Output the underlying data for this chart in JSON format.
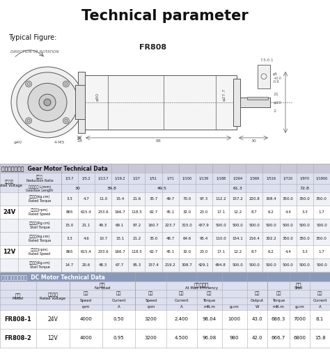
{
  "title": "Technical parameter",
  "typical_figure": "Typical Figure:",
  "gear_motor_header": "减速箱技术参数  Gear Motor Technical Data",
  "dc_motor_header": "直流马达技术参数  DC Motor Technical Data",
  "reduction_ratios": [
    "1/3.7",
    "1/5.2",
    "1/13.7",
    "1/19.2",
    "1/27",
    "1/51",
    "1/71",
    "1/100",
    "1/139",
    "1/188",
    "1/264",
    "1/369",
    "1/516",
    "1/720",
    "1/970",
    "1/1900"
  ],
  "gb_lengths_spans": [
    {
      "val": "30",
      "s": 0,
      "e": 1
    },
    {
      "val": "39.8",
      "s": 2,
      "e": 3
    },
    {
      "val": "49.5",
      "s": 4,
      "e": 7
    },
    {
      "val": "61.3",
      "s": 8,
      "e": 12
    },
    {
      "val": "72.8",
      "s": 13,
      "e": 15
    }
  ],
  "gear_rows_24v": [
    {
      "zh": "额定力矩(kg.cm)",
      "en": "Rated Torque",
      "values": [
        "3.3",
        "4.7",
        "11.0",
        "15.4",
        "21.6",
        "35.7",
        "49.7",
        "70.0",
        "97.3",
        "112.2",
        "157.2",
        "220.8",
        "308.4",
        "350.0",
        "350.0",
        "350.0"
      ]
    },
    {
      "zh": "额定转速(rpm)",
      "en": "Rated Speed",
      "values": [
        "865",
        "615.4",
        "233.6",
        "166.7",
        "118.5",
        "62.7",
        "45.1",
        "32.0",
        "23.0",
        "17.1",
        "12.2",
        "8.7",
        "6.2",
        "4.4",
        "3.3",
        "1.7"
      ]
    },
    {
      "zh": "堵转力矩(Kg.cm)",
      "en": "Stall Torque",
      "values": [
        "15.0",
        "21.1",
        "49.3",
        "69.1",
        "97.2",
        "160.7",
        "223.7",
        "315.0",
        "437.9",
        "500.0",
        "500.0",
        "500.0",
        "500.0",
        "500.0",
        "500.0",
        "500.0"
      ]
    }
  ],
  "gear_rows_12v": [
    {
      "zh": "额定力矩(kg.cm)",
      "en": "Rated Torque",
      "values": [
        "3.3",
        "4.6",
        "10.7",
        "15.1",
        "21.2",
        "35.0",
        "48.7",
        "64.6",
        "95.4",
        "110.0",
        "154.1",
        "216.4",
        "302.2",
        "350.0",
        "350.0",
        "350.0"
      ]
    },
    {
      "zh": "额定转速(rpm)",
      "en": "Rated Speed",
      "values": [
        "865",
        "615.4",
        "233.6",
        "166.7",
        "118.5",
        "62.7",
        "45.1",
        "32.0",
        "23.0",
        "17.1",
        "12.2",
        "8.7",
        "6.2",
        "4.4",
        "3.3",
        "1.7"
      ]
    },
    {
      "zh": "堵转力矩(Kg.cm)",
      "en": "Stall Torque",
      "values": [
        "14.7",
        "20.6",
        "48.3",
        "67.7",
        "95.3",
        "157.4",
        "219.2",
        "308.7",
        "429.1",
        "494.8",
        "500.0",
        "500.0",
        "500.0",
        "500.0",
        "500.0",
        "500.0"
      ]
    }
  ],
  "dc_rows": [
    [
      "FR808-1",
      "24V",
      "4000",
      "0.50",
      "3200",
      "2.400",
      "98.04",
      "1000",
      "43.0",
      "686.3",
      "7000",
      "8.1"
    ],
    [
      "FR808-2",
      "12V",
      "4000",
      "0.95",
      "3200",
      "4.500",
      "96.08",
      "980",
      "42.0",
      "666.7",
      "6800",
      "15.8"
    ]
  ],
  "header_gear_bg": "#c8c8d8",
  "header_dc_bg": "#8899bb",
  "subhdr_bg": "#dde0ee",
  "row_alt_bg": "#f0f2f8",
  "row_norm_bg": "#ffffff",
  "line_color": "#aaaaaa",
  "text_dark": "#111111",
  "bg": "#ffffff"
}
